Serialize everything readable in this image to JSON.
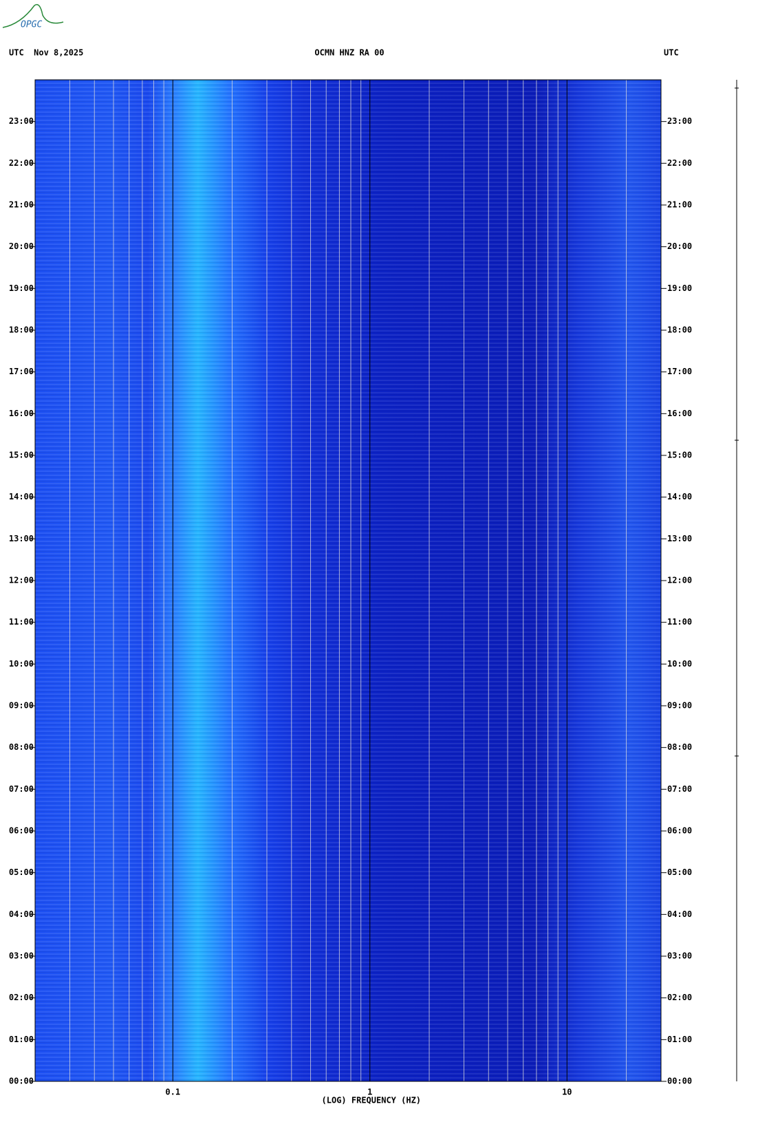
{
  "chart_data": {
    "type": "spectrogram",
    "logo": "OPGC",
    "title": "OCMN HNZ RA 00",
    "left_header": "UTC  Nov 8,2025",
    "right_header": "UTC",
    "xlabel": "(LOG) FREQUENCY (HZ)",
    "xscale": "log",
    "xlim": [
      0.02,
      30
    ],
    "xticks": [
      0.1,
      1,
      10
    ],
    "xminor": [
      0.03,
      0.04,
      0.05,
      0.06,
      0.07,
      0.08,
      0.09,
      0.2,
      0.3,
      0.4,
      0.5,
      0.6,
      0.7,
      0.8,
      0.9,
      2,
      3,
      4,
      5,
      6,
      7,
      8,
      9,
      20,
      30
    ],
    "ylim": [
      0,
      24
    ],
    "yticks": [
      {
        "value": 0,
        "label": "00:00"
      },
      {
        "value": 1,
        "label": "01:00"
      },
      {
        "value": 2,
        "label": "02:00"
      },
      {
        "value": 3,
        "label": "03:00"
      },
      {
        "value": 4,
        "label": "04:00"
      },
      {
        "value": 5,
        "label": "05:00"
      },
      {
        "value": 6,
        "label": "06:00"
      },
      {
        "value": 7,
        "label": "07:00"
      },
      {
        "value": 8,
        "label": "08:00"
      },
      {
        "value": 9,
        "label": "09:00"
      },
      {
        "value": 10,
        "label": "10:00"
      },
      {
        "value": 11,
        "label": "11:00"
      },
      {
        "value": 12,
        "label": "12:00"
      },
      {
        "value": 13,
        "label": "13:00"
      },
      {
        "value": 14,
        "label": "14:00"
      },
      {
        "value": 15,
        "label": "15:00"
      },
      {
        "value": 16,
        "label": "16:00"
      },
      {
        "value": 17,
        "label": "17:00"
      },
      {
        "value": 18,
        "label": "18:00"
      },
      {
        "value": 19,
        "label": "19:00"
      },
      {
        "value": 20,
        "label": "20:00"
      },
      {
        "value": 21,
        "label": "21:00"
      },
      {
        "value": 22,
        "label": "22:00"
      },
      {
        "value": 23,
        "label": "23:00"
      }
    ]
  }
}
